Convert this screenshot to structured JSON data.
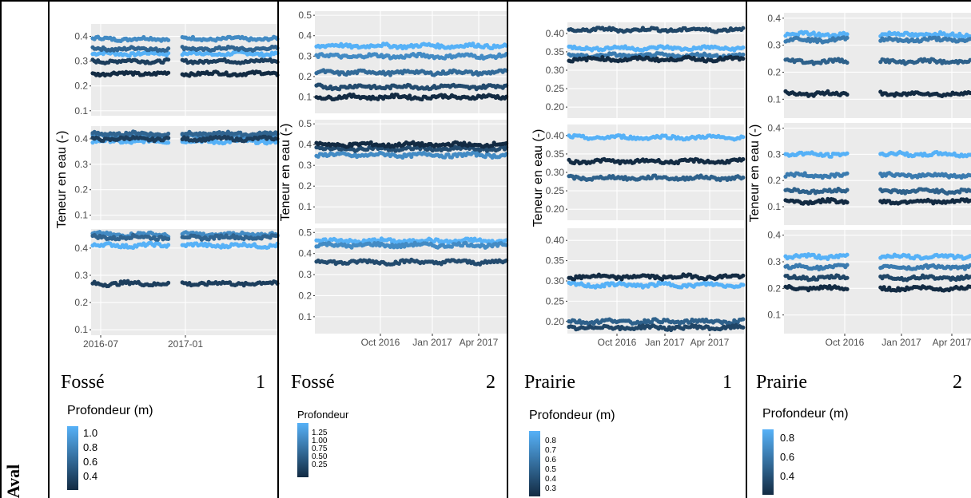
{
  "row_label": "Aval",
  "y_axis_label": "Teneur en eau (-)",
  "legend_title_default": "Profondeur (m)",
  "colors": {
    "light": "#56B1F7",
    "dark": "#132B43",
    "panel_bg": "#EBEBEB",
    "grid": "#FFFFFF"
  },
  "chart_data": [
    {
      "type": "scatter",
      "site": "Fossé",
      "number": "1",
      "legend": {
        "title": "Profondeur (m)",
        "ticks": [
          "1.0",
          "0.8",
          "0.6",
          "0.4"
        ]
      },
      "x_ticks": [
        "2016-07",
        "2017-01"
      ],
      "facets": [
        {
          "ylim": [
            0.08,
            0.45
          ],
          "ticks": [
            "0.4",
            "0.3",
            "0.2",
            "0.1"
          ],
          "series": [
            {
              "depth": 1.0,
              "y": 0.33
            },
            {
              "depth": 0.8,
              "y": 0.39
            },
            {
              "depth": 0.6,
              "y": 0.35
            },
            {
              "depth": 0.4,
              "y": 0.3
            },
            {
              "depth": 0.3,
              "y": 0.25
            }
          ]
        },
        {
          "ylim": [
            0.08,
            0.45
          ],
          "ticks": [
            "0.4",
            "0.3",
            "0.2",
            "0.1"
          ],
          "series": [
            {
              "depth": 1.0,
              "y": 0.39
            },
            {
              "depth": 0.8,
              "y": 0.41
            },
            {
              "depth": 0.6,
              "y": 0.42
            },
            {
              "depth": 0.4,
              "y": 0.4
            }
          ]
        },
        {
          "ylim": [
            0.08,
            0.47
          ],
          "ticks": [
            "0.4",
            "0.3",
            "0.2",
            "0.1"
          ],
          "series": [
            {
              "depth": 1.0,
              "y": 0.41
            },
            {
              "depth": 0.8,
              "y": 0.45
            },
            {
              "depth": 0.6,
              "y": 0.44
            },
            {
              "depth": 0.4,
              "y": 0.27
            }
          ]
        }
      ]
    },
    {
      "type": "scatter",
      "site": "Fossé",
      "number": "2",
      "legend": {
        "title": "Profondeur",
        "ticks": [
          "1.25",
          "1.00",
          "0.75",
          "0.50",
          "0.25"
        ]
      },
      "x_ticks": [
        "Oct 2016",
        "Jan 2017",
        "Apr 2017"
      ],
      "facets": [
        {
          "ylim": [
            0.02,
            0.52
          ],
          "ticks": [
            "0.5",
            "0.4",
            "0.3",
            "0.2",
            "0.1"
          ],
          "series": [
            {
              "depth": 1.3,
              "y": 0.35
            },
            {
              "depth": 1.0,
              "y": 0.3
            },
            {
              "depth": 0.75,
              "y": 0.22
            },
            {
              "depth": 0.5,
              "y": 0.15
            },
            {
              "depth": 0.25,
              "y": 0.1
            }
          ]
        },
        {
          "ylim": [
            0.02,
            0.52
          ],
          "ticks": [
            "0.5",
            "0.4",
            "0.3",
            "0.2",
            "0.1"
          ],
          "series": [
            {
              "depth": 1.0,
              "y": 0.35
            },
            {
              "depth": 0.5,
              "y": 0.38
            },
            {
              "depth": 0.25,
              "y": 0.4
            }
          ]
        },
        {
          "ylim": [
            0.02,
            0.52
          ],
          "ticks": [
            "0.5",
            "0.4",
            "0.3",
            "0.2",
            "0.1"
          ],
          "series": [
            {
              "depth": 1.3,
              "y": 0.46
            },
            {
              "depth": 1.0,
              "y": 0.44
            },
            {
              "depth": 0.5,
              "y": 0.36
            }
          ]
        }
      ]
    },
    {
      "type": "scatter",
      "site": "Prairie",
      "number": "1",
      "legend": {
        "title": "Profondeur (m)",
        "ticks": [
          "0.8",
          "0.7",
          "0.6",
          "0.5",
          "0.4",
          "0.3"
        ]
      },
      "x_ticks": [
        "Oct 2016",
        "Jan 2017",
        "Apr 2017"
      ],
      "facets": [
        {
          "ylim": [
            0.17,
            0.43
          ],
          "ticks": [
            "0.40",
            "0.35",
            "0.30",
            "0.25",
            "0.20"
          ],
          "series": [
            {
              "depth": 0.8,
              "y": 0.36
            },
            {
              "depth": 0.6,
              "y": 0.34
            },
            {
              "depth": 0.4,
              "y": 0.41
            },
            {
              "depth": 0.3,
              "y": 0.33
            }
          ]
        },
        {
          "ylim": [
            0.17,
            0.43
          ],
          "ticks": [
            "0.40",
            "0.35",
            "0.30",
            "0.25",
            "0.20"
          ],
          "series": [
            {
              "depth": 0.8,
              "y": 0.395
            },
            {
              "depth": 0.5,
              "y": 0.285
            },
            {
              "depth": 0.3,
              "y": 0.33
            }
          ]
        },
        {
          "ylim": [
            0.17,
            0.43
          ],
          "ticks": [
            "0.40",
            "0.35",
            "0.30",
            "0.25",
            "0.20"
          ],
          "series": [
            {
              "depth": 0.8,
              "y": 0.29
            },
            {
              "depth": 0.5,
              "y": 0.2
            },
            {
              "depth": 0.4,
              "y": 0.185
            },
            {
              "depth": 0.3,
              "y": 0.31
            }
          ]
        }
      ]
    },
    {
      "type": "scatter",
      "site": "Prairie",
      "number": "2",
      "legend": {
        "title": "Profondeur (m)",
        "ticks": [
          "0.8",
          "0.6",
          "0.4"
        ]
      },
      "x_ticks": [
        "Oct 2016",
        "Jan 2017",
        "Apr 2017"
      ],
      "facets": [
        {
          "ylim": [
            0.03,
            0.42
          ],
          "ticks": [
            "0.4",
            "0.3",
            "0.2",
            "0.1"
          ],
          "series": [
            {
              "depth": 0.8,
              "y": 0.34
            },
            {
              "depth": 0.6,
              "y": 0.32
            },
            {
              "depth": 0.5,
              "y": 0.24
            },
            {
              "depth": 0.3,
              "y": 0.12
            }
          ]
        },
        {
          "ylim": [
            0.03,
            0.42
          ],
          "ticks": [
            "0.4",
            "0.3",
            "0.2",
            "0.1"
          ],
          "series": [
            {
              "depth": 0.8,
              "y": 0.3
            },
            {
              "depth": 0.6,
              "y": 0.22
            },
            {
              "depth": 0.5,
              "y": 0.16
            },
            {
              "depth": 0.3,
              "y": 0.12
            }
          ]
        },
        {
          "ylim": [
            0.03,
            0.42
          ],
          "ticks": [
            "0.4",
            "0.3",
            "0.2",
            "0.1"
          ],
          "series": [
            {
              "depth": 0.8,
              "y": 0.32
            },
            {
              "depth": 0.6,
              "y": 0.28
            },
            {
              "depth": 0.4,
              "y": 0.24
            },
            {
              "depth": 0.3,
              "y": 0.2
            }
          ]
        }
      ]
    }
  ]
}
